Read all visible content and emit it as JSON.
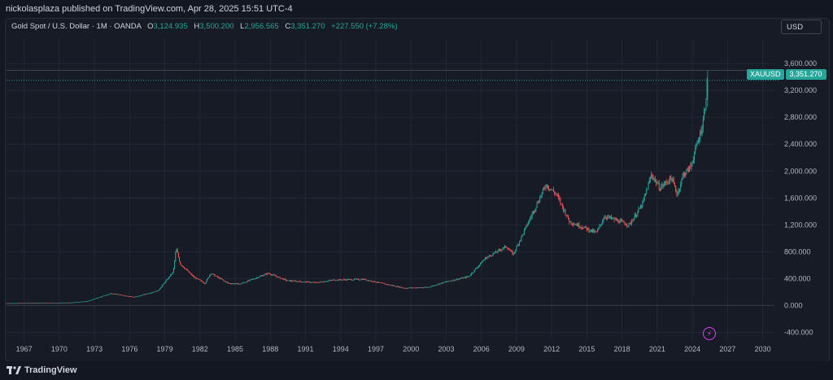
{
  "header": {
    "publisher_text": "nickolasplaza published on TradingView.com, Apr 28, 2025 15:51 UTC-4"
  },
  "legend": {
    "symbol": "Gold Spot / U.S. Dollar · 1M · OANDA",
    "open_label": "O",
    "open": "3,124.935",
    "high_label": "H",
    "high": "3,500.200",
    "low_label": "L",
    "low": "2,956.565",
    "close_label": "C",
    "close": "3,351.270",
    "change": "+227.550 (+7.28%)"
  },
  "currency_button": "USD",
  "price_tag": {
    "symbol": "XAUUSD",
    "price": "3,351.270"
  },
  "footer": {
    "brand": "TradingView"
  },
  "colors": {
    "up": "#26a69a",
    "down": "#ef5350",
    "bg": "#171b26",
    "grid": "#232735",
    "text": "#b2b5be",
    "flash": "#e040fb"
  },
  "chart_data": {
    "type": "candlestick",
    "title": "Gold Spot / U.S. Dollar · 1M · OANDA",
    "ylabel": "USD",
    "ylim": [
      -540,
      3820
    ],
    "y_ticks": [
      -400,
      0,
      400,
      800,
      1200,
      1600,
      2000,
      2400,
      2800,
      3200,
      3600
    ],
    "y_tick_labels": [
      "-400.000",
      "0.000",
      "400.000",
      "800.000",
      "1,200.000",
      "1,600.000",
      "2,000.000",
      "2,400.000",
      "2,800.000",
      "3,200.000",
      "3,600.000"
    ],
    "xlim": [
      1965.5,
      2031.0
    ],
    "x_ticks": [
      1967,
      1970,
      1973,
      1976,
      1979,
      1982,
      1985,
      1988,
      1991,
      1994,
      1997,
      2000,
      2003,
      2006,
      2009,
      2012,
      2015,
      2018,
      2021,
      2024,
      2027,
      2030
    ],
    "x_tick_labels": [
      "1967",
      "1970",
      "1973",
      "1976",
      "1979",
      "1982",
      "1985",
      "1988",
      "1991",
      "1994",
      "1997",
      "2000",
      "2003",
      "2006",
      "2009",
      "2012",
      "2015",
      "2018",
      "2021",
      "2024",
      "2027",
      "2030"
    ],
    "start_year": 1965.5,
    "anchors": [
      [
        1965.5,
        35
      ],
      [
        1968,
        38
      ],
      [
        1971,
        42
      ],
      [
        1972.5,
        65
      ],
      [
        1974.5,
        180
      ],
      [
        1976.5,
        125
      ],
      [
        1978.5,
        220
      ],
      [
        1979.8,
        500
      ],
      [
        1980.05,
        850
      ],
      [
        1980.4,
        620
      ],
      [
        1981.5,
        430
      ],
      [
        1982.5,
        330
      ],
      [
        1983,
        480
      ],
      [
        1984.5,
        330
      ],
      [
        1985.5,
        320
      ],
      [
        1987.9,
        480
      ],
      [
        1989.5,
        370
      ],
      [
        1992,
        340
      ],
      [
        1993.5,
        380
      ],
      [
        1996,
        390
      ],
      [
        1999.5,
        260
      ],
      [
        2001.5,
        270
      ],
      [
        2003,
        350
      ],
      [
        2005,
        430
      ],
      [
        2006.4,
        700
      ],
      [
        2008.2,
        880
      ],
      [
        2008.8,
        760
      ],
      [
        2011.6,
        1800
      ],
      [
        2012.5,
        1650
      ],
      [
        2013.6,
        1250
      ],
      [
        2015.9,
        1080
      ],
      [
        2016.6,
        1330
      ],
      [
        2018.7,
        1200
      ],
      [
        2019.8,
        1500
      ],
      [
        2020.6,
        1950
      ],
      [
        2021.3,
        1750
      ],
      [
        2022.3,
        1900
      ],
      [
        2022.8,
        1650
      ],
      [
        2023.3,
        1950
      ],
      [
        2023.9,
        2050
      ],
      [
        2024.4,
        2350
      ],
      [
        2024.9,
        2650
      ],
      [
        2025.2,
        3000
      ],
      [
        2025.3,
        3300
      ]
    ],
    "last_candle": {
      "open": 3124.935,
      "high": 3500.2,
      "low": 2956.565,
      "close": 3351.27
    },
    "last_price": 3351.27,
    "max_line": 3500.2
  }
}
